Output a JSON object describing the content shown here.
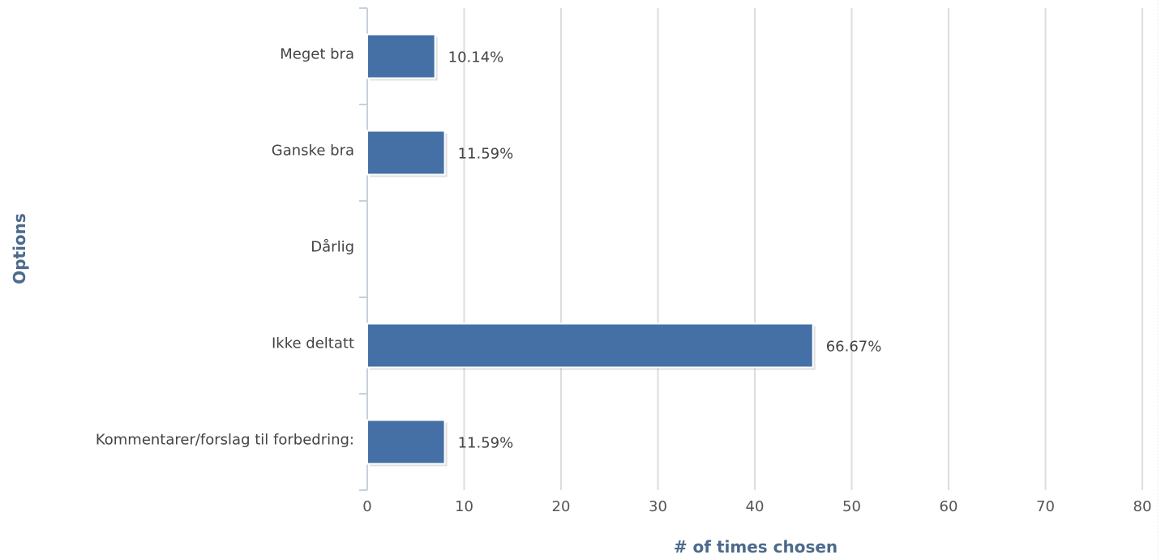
{
  "chart_data": {
    "type": "bar",
    "orientation": "horizontal",
    "categories": [
      "Meget bra",
      "Ganske bra",
      "Dårlig",
      "Ikke deltatt",
      "Kommentarer/forslag til forbedring:"
    ],
    "values": [
      7,
      8,
      0,
      46,
      8
    ],
    "data_labels": [
      "10.14%",
      "11.59%",
      "",
      "66.67%",
      "11.59%"
    ],
    "xlabel": "# of times chosen",
    "ylabel": "Options",
    "xlim": [
      0,
      80
    ],
    "xticks": [
      0,
      10,
      20,
      30,
      40,
      50,
      60,
      70,
      80
    ],
    "grid": true,
    "legend": "none",
    "colors": {
      "bar": "#4570a6",
      "grid": "#dddddd",
      "axis": "#c8d0da",
      "axis_title": "#4d6a8c",
      "text": "#444444"
    }
  }
}
